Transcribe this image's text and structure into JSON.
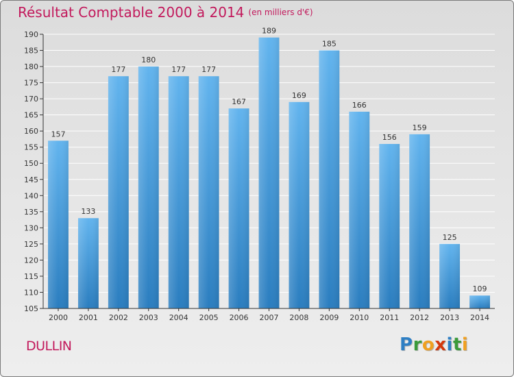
{
  "title": "Résultat Comptable 2000 à 2014",
  "unit_note": "(en milliers d'€)",
  "commune": "DULLIN",
  "logo": {
    "letters": [
      {
        "ch": "P",
        "color": "#2e7fc4"
      },
      {
        "ch": "r",
        "color": "#3a9a3a"
      },
      {
        "ch": "o",
        "color": "#f0a020"
      },
      {
        "ch": "x",
        "color": "#d4380d"
      },
      {
        "ch": "i",
        "color": "#2e7fc4"
      },
      {
        "ch": "t",
        "color": "#3a9a3a"
      },
      {
        "ch": "i",
        "color": "#f0a020"
      }
    ]
  },
  "colors": {
    "bar_top": "#62b4ee",
    "bar_bottom": "#2a7dbf",
    "grid": "#ffffff",
    "axis": "#333333",
    "title": "#c2185b"
  },
  "chart_data": {
    "type": "bar",
    "title": "Résultat Comptable 2000 à 2014",
    "subtitle": "(en milliers d'€)",
    "xlabel": "",
    "ylabel": "",
    "categories": [
      "2000",
      "2001",
      "2002",
      "2003",
      "2004",
      "2005",
      "2006",
      "2007",
      "2008",
      "2009",
      "2010",
      "2011",
      "2012",
      "2013",
      "2014"
    ],
    "values": [
      157,
      133,
      177,
      180,
      177,
      177,
      167,
      189,
      169,
      185,
      166,
      156,
      159,
      125,
      109
    ],
    "ylim": [
      105,
      190
    ],
    "yticks": [
      105,
      110,
      115,
      120,
      125,
      130,
      135,
      140,
      145,
      150,
      155,
      160,
      165,
      170,
      175,
      180,
      185,
      190
    ],
    "grid": true,
    "legend": "none"
  }
}
